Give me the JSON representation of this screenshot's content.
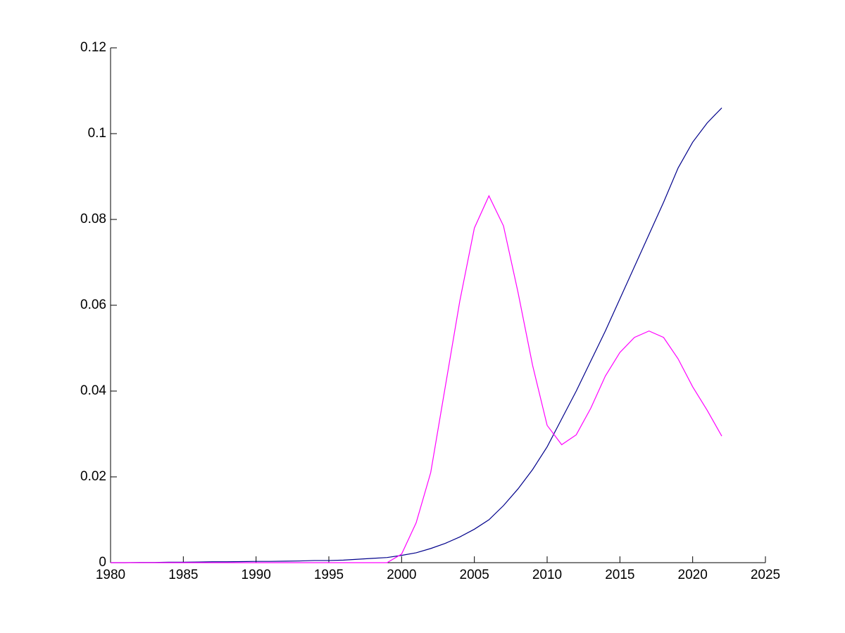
{
  "chart_data": {
    "type": "line",
    "x": [
      1980,
      1981,
      1982,
      1983,
      1984,
      1985,
      1986,
      1987,
      1988,
      1989,
      1990,
      1991,
      1992,
      1993,
      1994,
      1995,
      1996,
      1997,
      1998,
      1999,
      2000,
      2001,
      2002,
      2003,
      2004,
      2005,
      2006,
      2007,
      2008,
      2009,
      2010,
      2011,
      2012,
      2013,
      2014,
      2015,
      2016,
      2017,
      2018,
      2019,
      2020,
      2021,
      2022
    ],
    "series": [
      {
        "color": "#00008b",
        "values": [
          0,
          0,
          5e-05,
          5e-05,
          0.0001,
          0.0001,
          0.00015,
          0.0002,
          0.0002,
          0.00025,
          0.0003,
          0.0003,
          0.00035,
          0.0004,
          0.0005,
          0.0005,
          0.0006,
          0.0008,
          0.001,
          0.0012,
          0.0017,
          0.0023,
          0.0033,
          0.0045,
          0.006,
          0.0078,
          0.01,
          0.0133,
          0.0172,
          0.0217,
          0.027,
          0.0335,
          0.04,
          0.047,
          0.054,
          0.0615,
          0.069,
          0.0765,
          0.084,
          0.092,
          0.098,
          0.1025,
          0.106
        ]
      },
      {
        "color": "#ff00ff",
        "values": [
          0,
          0,
          0,
          0,
          0,
          0,
          0,
          0,
          0,
          0,
          0,
          0,
          0,
          0,
          0,
          0,
          0,
          0,
          0,
          0,
          0.002,
          0.0093,
          0.021,
          0.041,
          0.061,
          0.078,
          0.0855,
          0.0785,
          0.063,
          0.046,
          0.032,
          0.0275,
          0.0298,
          0.036,
          0.0435,
          0.049,
          0.0525,
          0.054,
          0.0525,
          0.0475,
          0.041,
          0.0355,
          0.0295
        ]
      }
    ],
    "xlim": [
      1980,
      2025
    ],
    "xticks": [
      1980,
      1985,
      1990,
      1995,
      2000,
      2005,
      2010,
      2015,
      2020,
      2025
    ],
    "ylim": [
      0,
      0.12
    ],
    "yticks": [
      0,
      0.02,
      0.04,
      0.06,
      0.08,
      0.1,
      0.12
    ]
  }
}
